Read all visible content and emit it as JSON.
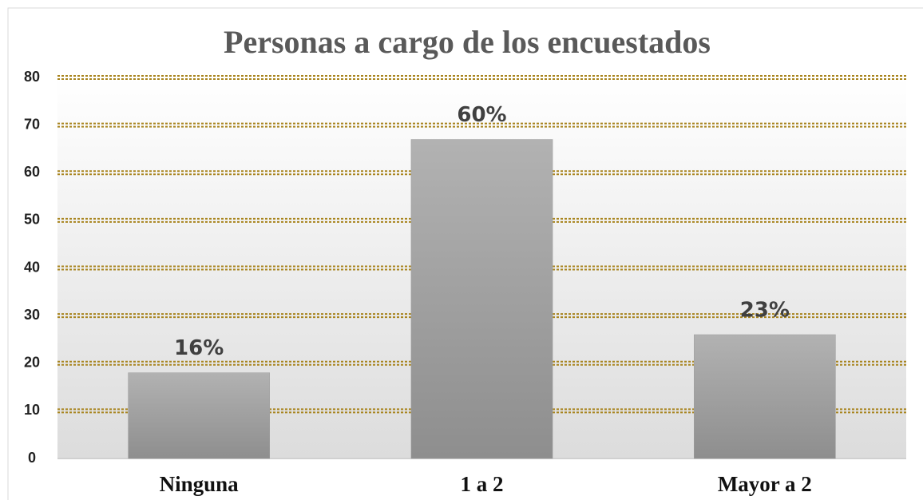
{
  "chart_data": {
    "type": "bar",
    "title": "Personas a cargo de los encuestados",
    "categories": [
      "Ninguna",
      "1 a 2",
      "Mayor a 2"
    ],
    "values": [
      18,
      67,
      26
    ],
    "value_labels": [
      "16%",
      "60%",
      "23%"
    ],
    "color": "#9f9f9f",
    "ylim": [
      0,
      80
    ],
    "yticks": [
      0,
      10,
      20,
      30,
      40,
      50,
      60,
      70,
      80
    ],
    "grid": true,
    "grid_color": "#a8841e"
  }
}
